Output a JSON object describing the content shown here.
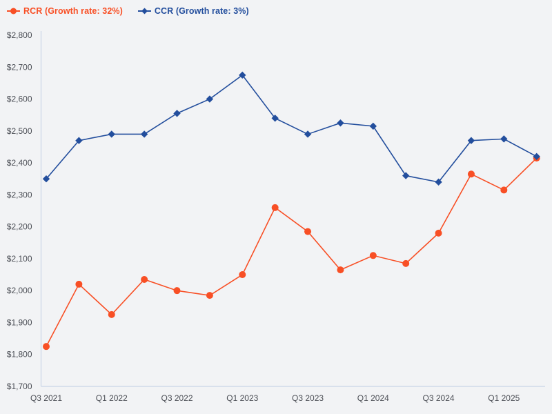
{
  "chart_data": {
    "type": "line",
    "categories": [
      "Q3 2021",
      "Q4 2021",
      "Q1 2022",
      "Q2 2022",
      "Q3 2022",
      "Q4 2022",
      "Q1 2023",
      "Q2 2023",
      "Q3 2023",
      "Q4 2023",
      "Q1 2024",
      "Q2 2024",
      "Q3 2024",
      "Q4 2024",
      "Q1 2025",
      "Q2 2025"
    ],
    "x_tick_labels": [
      "Q3 2021",
      "Q1 2022",
      "Q3 2022",
      "Q1 2023",
      "Q3 2023",
      "Q1 2024",
      "Q3 2024",
      "Q1 2025"
    ],
    "x_tick_every": 2,
    "series": [
      {
        "name": "RCR",
        "legend_label": "RCR (Growth rate: 32%)",
        "growth_rate": "32%",
        "marker": "circle",
        "color": "#f84f25",
        "values": [
          1825,
          2020,
          1925,
          2035,
          2000,
          1985,
          2050,
          2260,
          2185,
          2065,
          2110,
          2085,
          2180,
          2365,
          2315,
          2415
        ]
      },
      {
        "name": "CCR",
        "legend_label": "CCR (Growth rate: 3%)",
        "growth_rate": "3%",
        "marker": "diamond",
        "color": "#234e9d",
        "values": [
          2350,
          2470,
          2490,
          2490,
          2555,
          2600,
          2675,
          2540,
          2490,
          2525,
          2515,
          2360,
          2340,
          2470,
          2475,
          2420
        ]
      }
    ],
    "ylim": [
      1700,
      2800
    ],
    "y_tick_step": 100,
    "y_tick_labels": [
      "$1,700",
      "$1,800",
      "$1,900",
      "$2,000",
      "$2,100",
      "$2,200",
      "$2,300",
      "$2,400",
      "$2,500",
      "$2,600",
      "$2,700",
      "$2,800"
    ],
    "legend_position": "top-left",
    "grid": false,
    "background_color": "#f2f3f5",
    "axis_color": "#c9d5e6",
    "tick_label_color": "#4b4e55"
  }
}
